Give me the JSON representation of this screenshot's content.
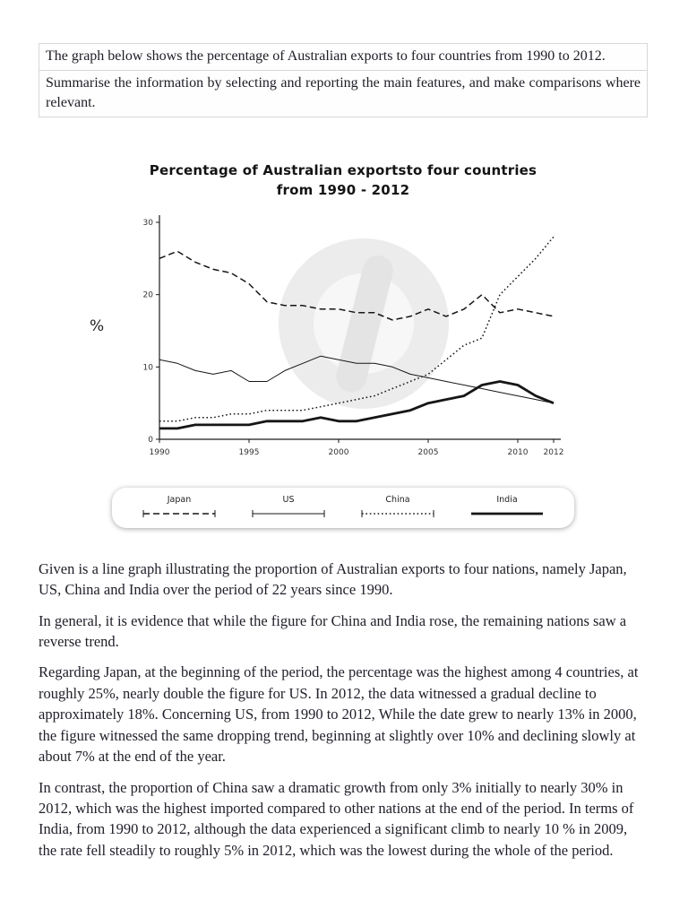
{
  "task_prompt": {
    "lines": [
      "The graph below shows the percentage of Australian exports to four countries from 1990 to 2012.",
      "Summarise the information by selecting and reporting the main features, and make comparisons where relevant."
    ]
  },
  "chart": {
    "title_line1": "Percentage of Australian exportsto four countries",
    "title_line2": "from 1990 - 2012",
    "y_axis_label": "%"
  },
  "chart_data": {
    "type": "line",
    "title": "Percentage of Australian exportsto four countries from 1990 - 2012",
    "xlabel": "",
    "ylabel": "%",
    "ylim": [
      0,
      30
    ],
    "yticks": [
      0,
      10,
      20,
      30
    ],
    "xticks": [
      1990,
      1995,
      2000,
      2005,
      2010,
      2012
    ],
    "grid": false,
    "legend_position": "bottom",
    "x": [
      1990,
      1991,
      1992,
      1993,
      1994,
      1995,
      1996,
      1997,
      1998,
      1999,
      2000,
      2001,
      2002,
      2003,
      2004,
      2005,
      2006,
      2007,
      2008,
      2009,
      2010,
      2011,
      2012
    ],
    "series": [
      {
        "name": "Japan",
        "style": "dashed",
        "width": 1.5,
        "legend_ticks": true,
        "values": [
          25,
          26,
          24.5,
          23.5,
          23,
          21.5,
          19,
          18.5,
          18.5,
          18,
          18,
          17.5,
          17.5,
          16.5,
          17,
          18,
          17,
          18,
          20,
          17.5,
          18,
          17.5,
          17
        ]
      },
      {
        "name": "US",
        "style": "solid",
        "width": 1,
        "legend_ticks": true,
        "values": [
          11,
          10.5,
          9.5,
          9,
          9.5,
          8,
          8,
          9.5,
          10.5,
          11.5,
          11,
          10.5,
          10.5,
          10,
          9,
          8.5,
          8,
          7.5,
          7,
          6.5,
          6,
          5.5,
          5
        ]
      },
      {
        "name": "China",
        "style": "dotted",
        "width": 1.5,
        "legend_ticks": true,
        "values": [
          2.5,
          2.5,
          3,
          3,
          3.5,
          3.5,
          4,
          4,
          4,
          4.5,
          5,
          5.5,
          6,
          7,
          8,
          9,
          11,
          13,
          14,
          20,
          22.5,
          25,
          28
        ]
      },
      {
        "name": "India",
        "style": "solid",
        "width": 2.8,
        "legend_ticks": false,
        "values": [
          1.5,
          1.5,
          2,
          2,
          2,
          2,
          2.5,
          2.5,
          2.5,
          3,
          2.5,
          2.5,
          3,
          3.5,
          4,
          5,
          5.5,
          6,
          7.5,
          8,
          7.5,
          6,
          5
        ]
      }
    ]
  },
  "essay": {
    "paragraphs": [
      "Given is a line graph illustrating the proportion of Australian exports to four nations, namely Japan, US, China and India over the period of 22 years since 1990.",
      "In general, it is evidence that while the figure for China and India rose, the remaining nations saw a reverse trend.",
      "Regarding Japan, at the beginning of the period, the percentage was the highest among 4 countries, at roughly 25%, nearly double the figure for US. In 2012, the data witnessed a gradual decline to approximately 18%. Concerning US, from 1990 to 2012, While the date grew to nearly 13% in 2000, the figure witnessed the same dropping trend, beginning at slightly over 10% and declining slowly at about 7% at the end of the year.",
      "In contrast, the proportion of China saw a dramatic growth from only 3% initially to nearly 30% in 2012, which was the highest imported compared to other nations at the end of the period. In terms of India, from 1990 to 2012, although the data experienced a significant climb to nearly 10 % in 2009, the rate fell steadily to roughly 5% in 2012, which was the lowest during the whole of the period."
    ]
  },
  "colors": {
    "line": "#161616",
    "text": "#20202a",
    "border": "#d8d8d8",
    "watermark": "#ececec"
  },
  "icons": {
    "watermark": "circle-logo-watermark"
  }
}
